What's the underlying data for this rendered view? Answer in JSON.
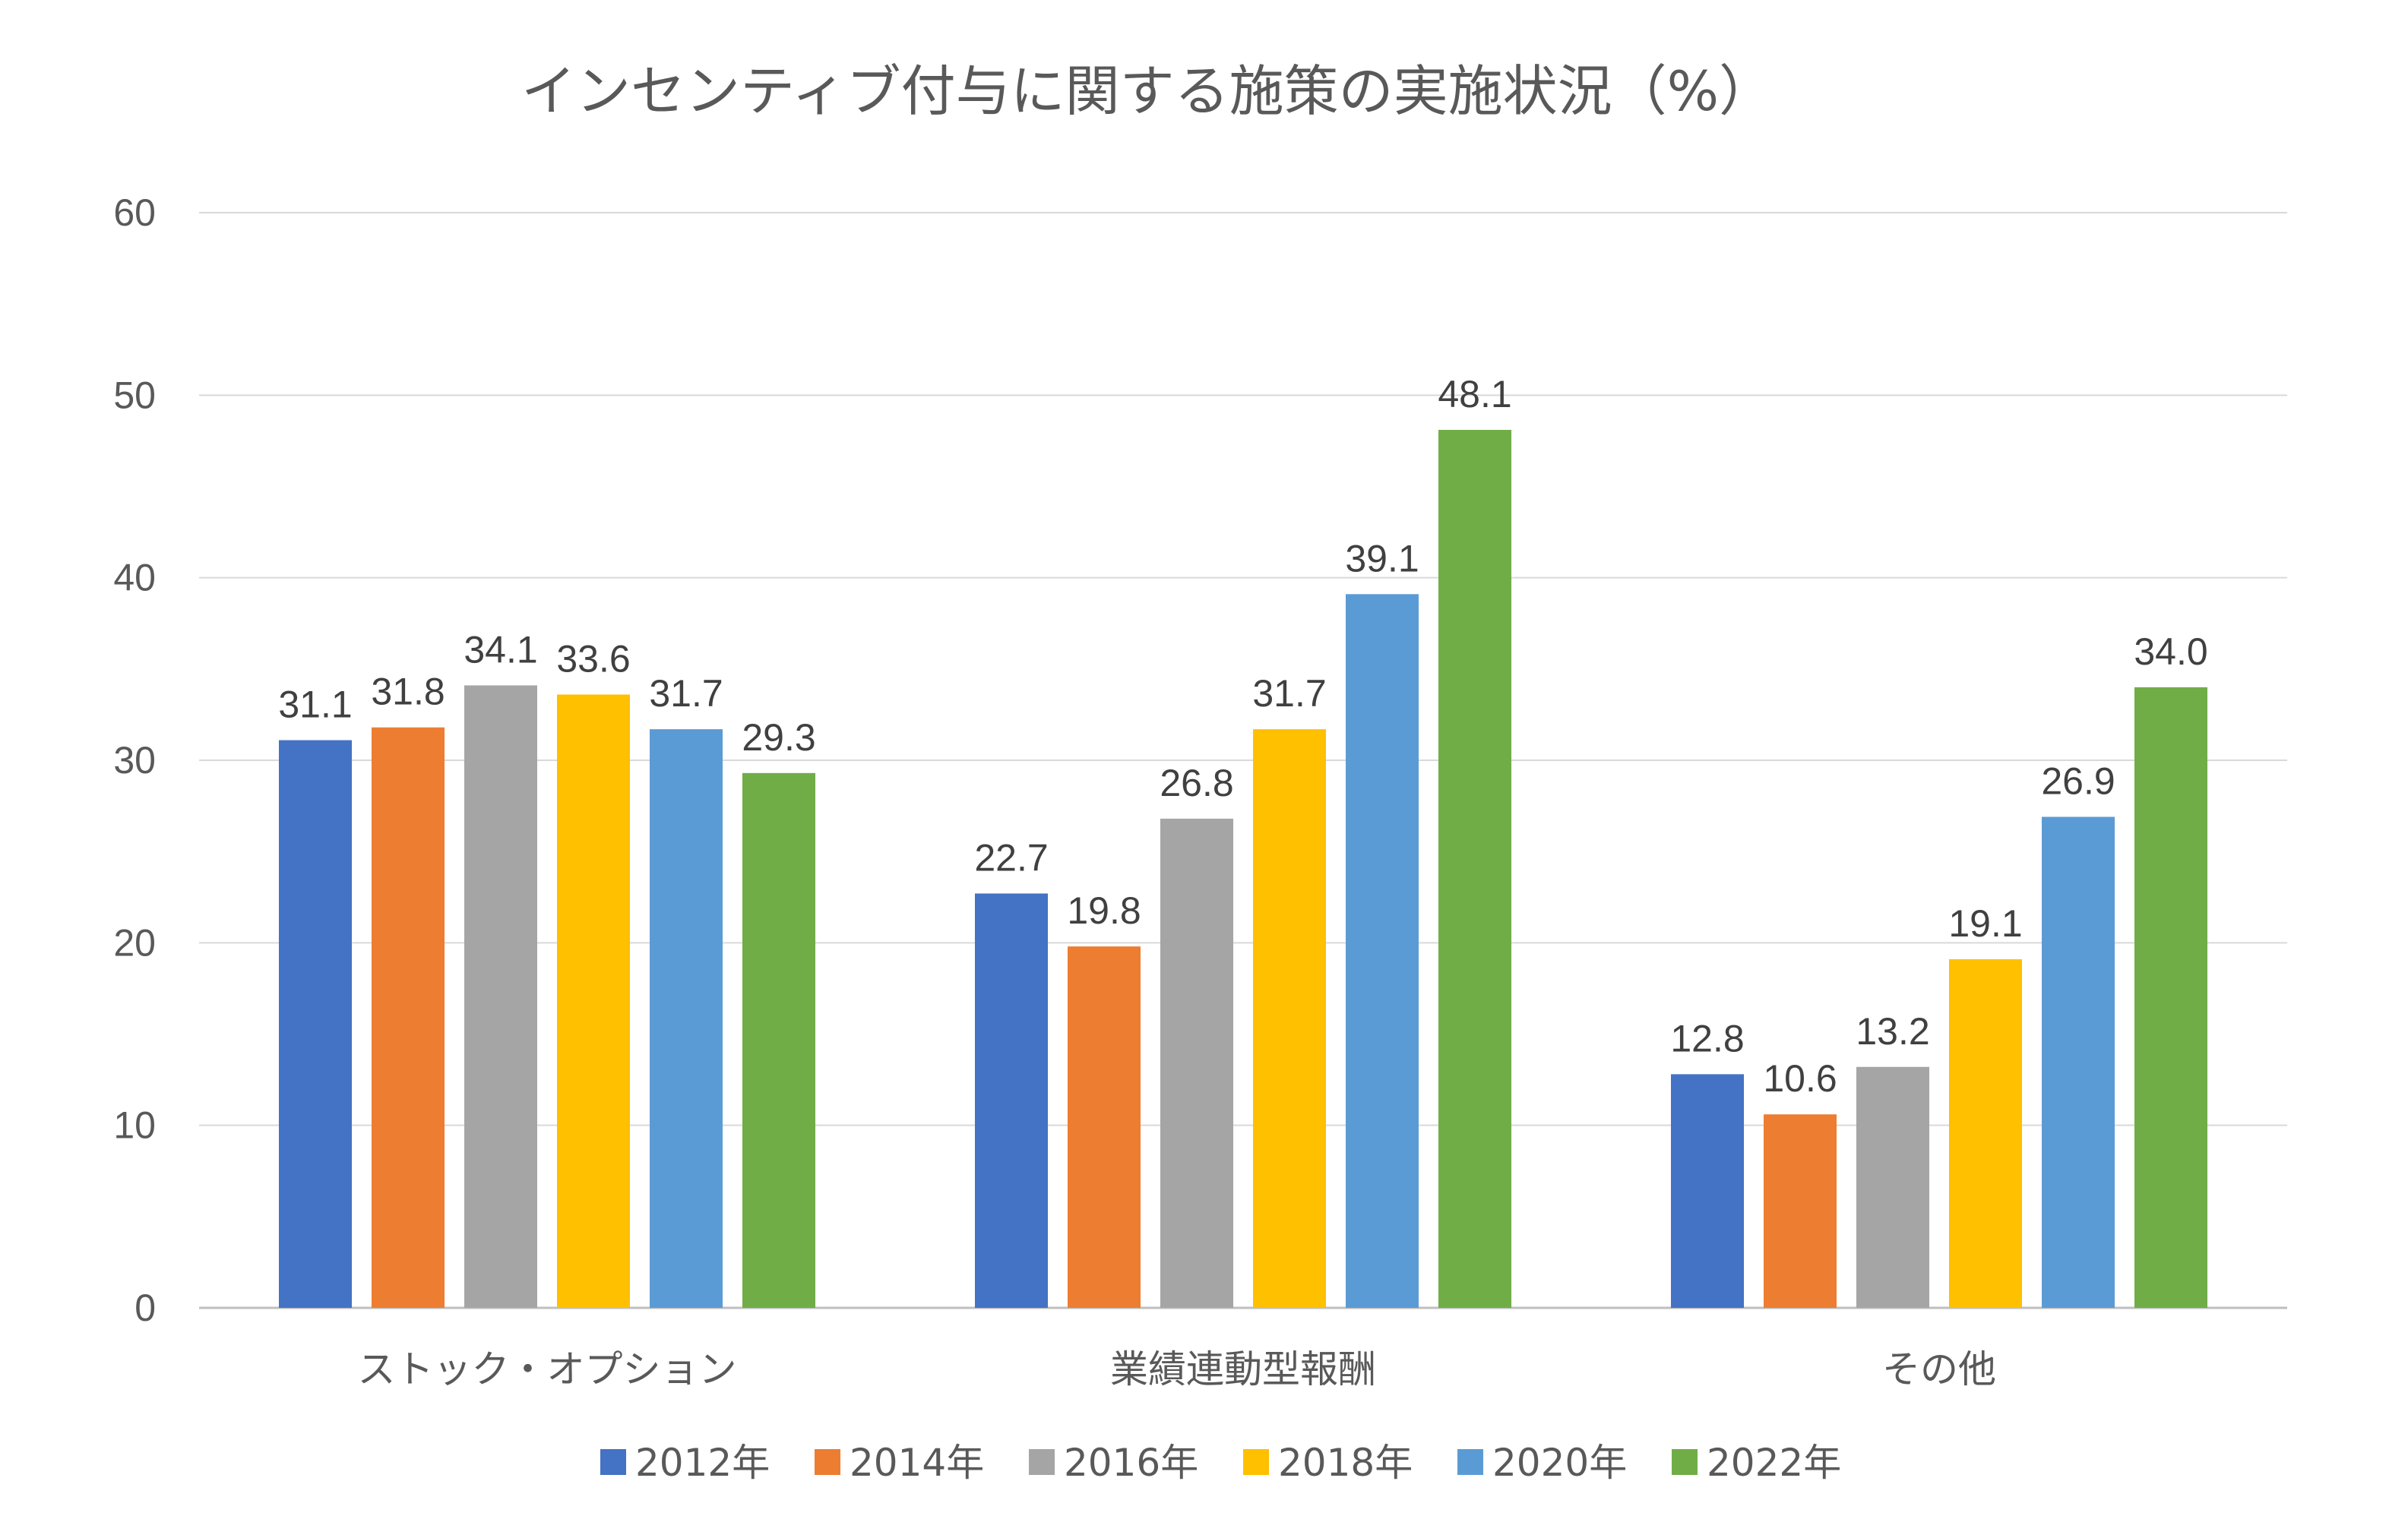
{
  "chart_data": {
    "type": "bar",
    "title": "インセンティブ付与に関する施策の実施状況（%）",
    "xlabel": "",
    "ylabel": "",
    "ylim": [
      0,
      60
    ],
    "yticks": [
      "0",
      "10",
      "20",
      "30",
      "40",
      "50",
      "60"
    ],
    "categories": [
      "ストック・オプション",
      "業績連動型報酬",
      "その他"
    ],
    "series": [
      {
        "name": "2012年",
        "color": "#4472C4",
        "values": [
          31.1,
          22.7,
          12.8
        ]
      },
      {
        "name": "2014年",
        "color": "#ED7D31",
        "values": [
          31.8,
          19.8,
          10.6
        ]
      },
      {
        "name": "2016年",
        "color": "#A5A5A5",
        "values": [
          34.1,
          26.8,
          13.2
        ]
      },
      {
        "name": "2018年",
        "color": "#FFC000",
        "values": [
          33.6,
          31.7,
          19.1
        ]
      },
      {
        "name": "2020年",
        "color": "#5B9BD5",
        "values": [
          31.7,
          39.1,
          26.9
        ]
      },
      {
        "name": "2022年",
        "color": "#70AD47",
        "values": [
          29.3,
          48.1,
          34.0
        ]
      }
    ],
    "data_labels": true,
    "grid": true,
    "legend_position": "bottom"
  }
}
